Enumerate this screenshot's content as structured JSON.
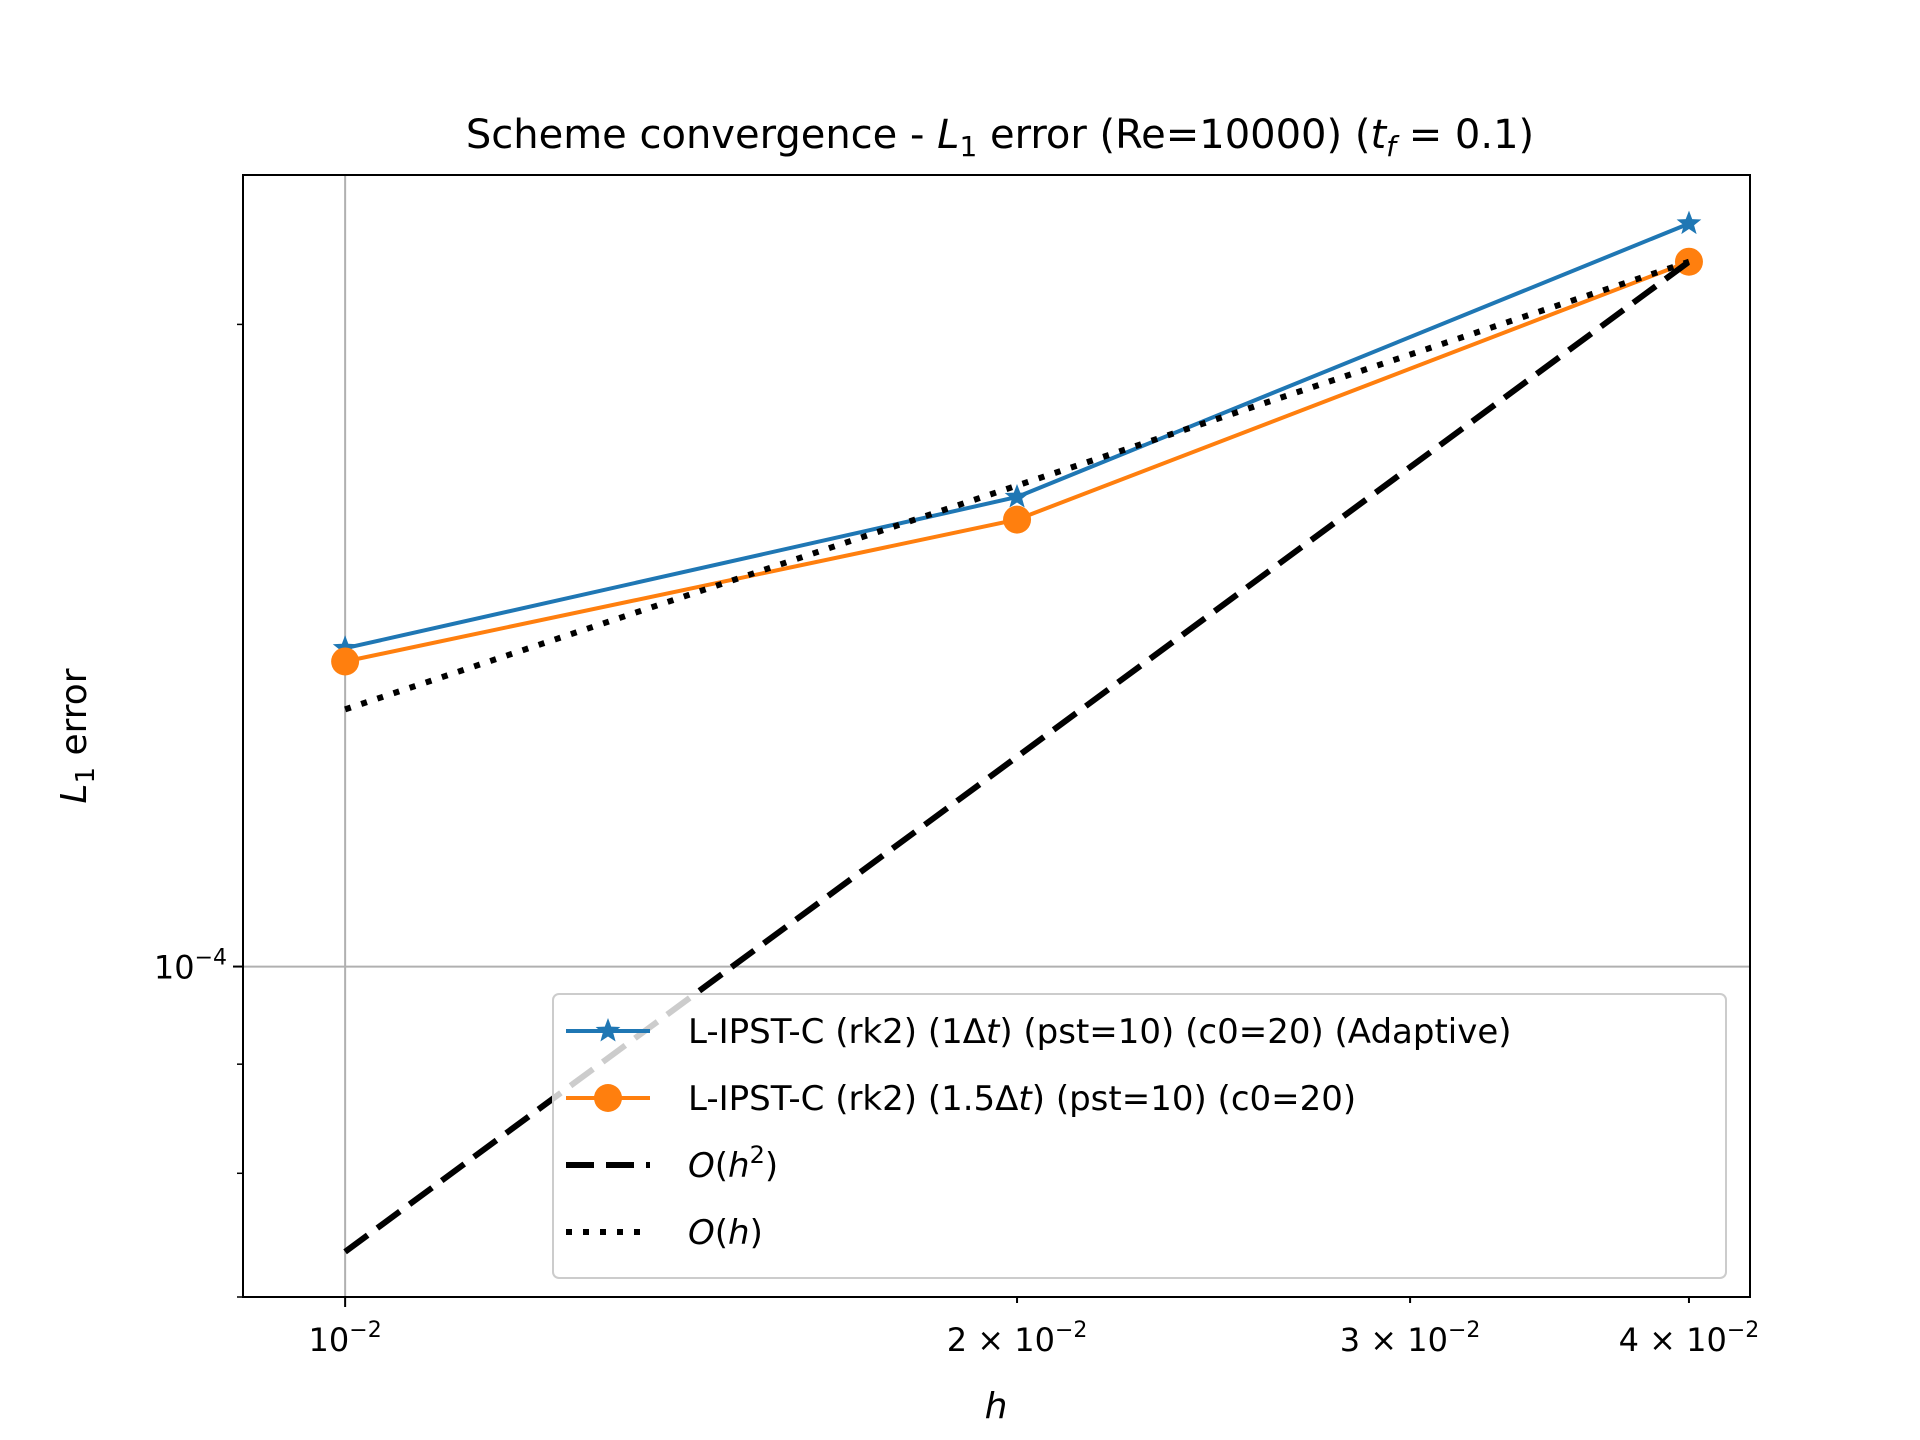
{
  "chart_data": {
    "type": "line",
    "title": {
      "prefix": "Scheme convergence - ",
      "error_name": "L",
      "error_sub": "1",
      "middle": " error (Re=10000) (",
      "time_var": "t",
      "time_sub": "f",
      "suffix": " = 0.1)"
    },
    "xlabel": "h",
    "ylabel": {
      "name": "L",
      "sub": "1",
      "rest": " error"
    },
    "xscale": "log",
    "yscale": "log",
    "xlim": [
      0.009,
      0.0426
    ],
    "ylim": [
      7e-05,
      0.000235
    ],
    "grid": true,
    "legend_position": "lower-right",
    "xticks": [
      {
        "value": 0.01,
        "mantissa": "",
        "base": "10",
        "exp": "−2"
      },
      {
        "value": 0.02,
        "mantissa": "2 × ",
        "base": "10",
        "exp": "−2"
      },
      {
        "value": 0.03,
        "mantissa": "3 × ",
        "base": "10",
        "exp": "−2"
      },
      {
        "value": 0.04,
        "mantissa": "4 × ",
        "base": "10",
        "exp": "−2"
      }
    ],
    "yticks": [
      {
        "value": 0.0001,
        "base": "10",
        "exp": "−4"
      }
    ],
    "series": [
      {
        "name": "L-IPST-C (rk2) (1Δt) (pst=10) (c0=20) (Adaptive)",
        "legend": {
          "pre": "L-IPST-C (rk2) (1Δ",
          "ital": "t",
          "post": ") (pst=10) (c0=20) (Adaptive)"
        },
        "color": "#1f77b4",
        "marker": "star",
        "dash": "solid",
        "x": [
          0.01,
          0.02,
          0.04
        ],
        "y": [
          0.000141,
          0.000166,
          0.000223
        ]
      },
      {
        "name": "L-IPST-C (rk2) (1.5Δt) (pst=10) (c0=20)",
        "legend": {
          "pre": "L-IPST-C (rk2) (1.5Δ",
          "ital": "t",
          "post": ") (pst=10) (c0=20)"
        },
        "color": "#ff7f0e",
        "marker": "circle",
        "dash": "solid",
        "x": [
          0.01,
          0.02,
          0.04
        ],
        "y": [
          0.000139,
          0.000162,
          0.000214
        ]
      },
      {
        "name": "O(h²)",
        "legend": {
          "fn": "O",
          "arg": "h",
          "exp": "2"
        },
        "color": "#000000",
        "marker": "none",
        "dash": "dashed",
        "x": [
          0.01,
          0.04
        ],
        "y": [
          7.35e-05,
          0.000214
        ]
      },
      {
        "name": "O(h)",
        "legend": {
          "fn": "O",
          "arg": "h",
          "exp": ""
        },
        "color": "#000000",
        "marker": "none",
        "dash": "dotted",
        "x": [
          0.01,
          0.04
        ],
        "y": [
          0.000132,
          0.000214
        ]
      }
    ]
  }
}
